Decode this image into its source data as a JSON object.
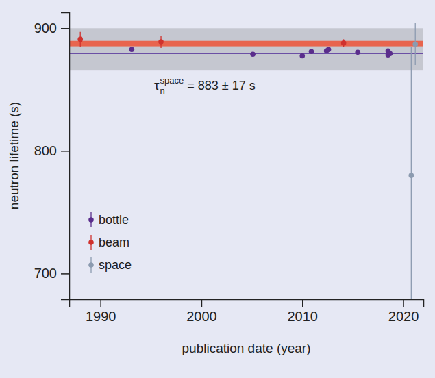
{
  "chart_data": {
    "type": "scatter",
    "x_label": "publication date (year)",
    "y_label": "neutron lifetime (s)",
    "xlim": [
      1986.9,
      2022.0
    ],
    "ylim": [
      679,
      913
    ],
    "xticks": [
      1990,
      2000,
      2010,
      2020
    ],
    "yticks": [
      700,
      800,
      900
    ],
    "grid": false,
    "legend": "lower left",
    "series": [
      {
        "name": "bottle",
        "color": "#5a2d8c",
        "marker": "circle",
        "x": [
          1993.1,
          2005.1,
          2010.0,
          2010.9,
          2012.4,
          2012.6,
          2015.5,
          2018.5,
          2018.5,
          2018.7
        ],
        "values": [
          882.7,
          878.8,
          877.5,
          881.0,
          881.6,
          882.7,
          880.4,
          881.6,
          878.2,
          879.3
        ],
        "errors": [
          1.5,
          1.0,
          1.5,
          1.5,
          1.5,
          1.5,
          1.0,
          1.0,
          1.0,
          1.0
        ]
      },
      {
        "name": "beam",
        "color": "#d0312d",
        "marker": "circle",
        "x": [
          1988.0,
          1996.0,
          2014.1
        ],
        "values": [
          891.0,
          889.0,
          888.0
        ],
        "errors": [
          6.0,
          5.0,
          3.0
        ]
      },
      {
        "name": "space",
        "color": "#8c9bb0",
        "marker": "circle",
        "x": [
          2020.8,
          2021.2
        ],
        "values": [
          780.0,
          887.0
        ],
        "errors": [
          105.0,
          17.0
        ]
      }
    ],
    "bands": [
      {
        "value": 883,
        "error": 17,
        "color": "#c5c7d0"
      },
      {
        "value": 887.5,
        "error": 2.2,
        "color": "#e8644e"
      }
    ],
    "reference_lines": [
      {
        "value": 879.5,
        "color": "#6b4fa5"
      }
    ],
    "annotation": {
      "symbol": "τ",
      "superscript": "space",
      "subscript": "n",
      "text": "= 883 ± 17 s"
    }
  }
}
